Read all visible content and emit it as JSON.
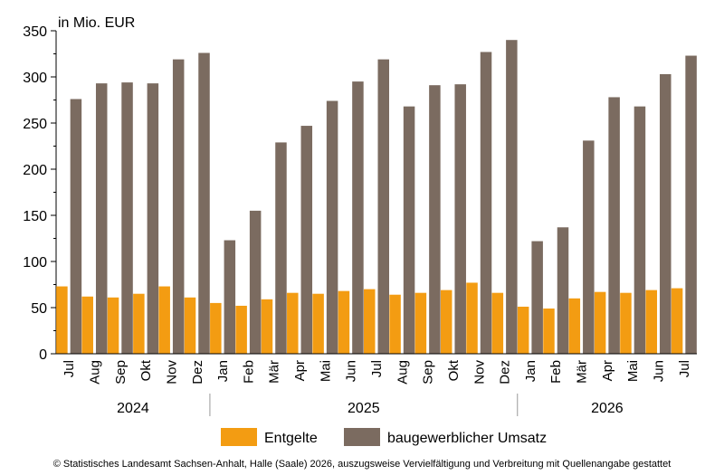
{
  "chart_data": {
    "type": "bar",
    "unit_label": "in Mio. EUR",
    "ylim": [
      0,
      350
    ],
    "yticks": [
      0,
      50,
      100,
      150,
      200,
      250,
      300,
      350
    ],
    "categories": [
      "Jul",
      "Aug",
      "Sep",
      "Okt",
      "Nov",
      "Dez",
      "Jan",
      "Feb",
      "Mär",
      "Apr",
      "Mai",
      "Jun",
      "Jul",
      "Aug",
      "Sep",
      "Okt",
      "Nov",
      "Dez",
      "Jan",
      "Feb",
      "Mär",
      "Apr",
      "Mai",
      "Jun",
      "Jul"
    ],
    "year_groups": [
      {
        "label": "2024",
        "start": 0,
        "count": 6
      },
      {
        "label": "2025",
        "start": 6,
        "count": 12
      },
      {
        "label": "2026",
        "start": 18,
        "count": 7
      }
    ],
    "series": [
      {
        "name": "Entgelte",
        "color": "#F39C12",
        "values": [
          73,
          62,
          61,
          65,
          73,
          61,
          55,
          52,
          59,
          66,
          65,
          68,
          70,
          64,
          66,
          69,
          77,
          66,
          51,
          49,
          60,
          67,
          66,
          69,
          71
        ]
      },
      {
        "name": "baugewerblicher Umsatz",
        "color": "#7B6B60",
        "values": [
          276,
          293,
          294,
          293,
          319,
          326,
          123,
          155,
          229,
          247,
          274,
          295,
          319,
          268,
          291,
          292,
          327,
          340,
          122,
          137,
          231,
          278,
          268,
          303,
          323
        ]
      }
    ],
    "grid": false,
    "legend_position": "bottom"
  },
  "footer": {
    "copyright": "© Statistisches Landesamt Sachsen-Anhalt, Halle (Saale) 2026, auszugsweise Vervielfältigung und Verbreitung mit Quellenangabe gestattet"
  }
}
